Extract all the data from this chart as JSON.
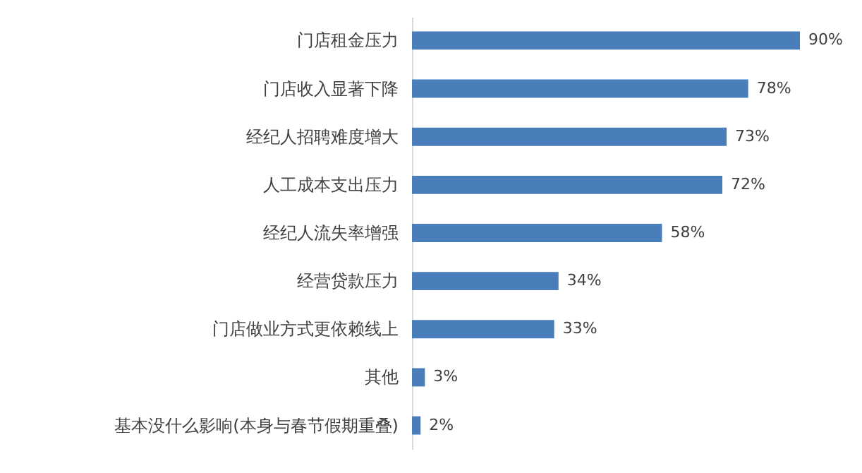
{
  "chart_data": {
    "type": "bar",
    "orientation": "horizontal",
    "categories": [
      "门店租金压力",
      "门店收入显著下降",
      "经纪人招聘难度增大",
      "人工成本支出压力",
      "经纪人流失率增强",
      "经营贷款压力",
      "门店做业方式更依赖线上",
      "其他",
      "基本没什么影响(本身与春节假期重叠)"
    ],
    "values": [
      90,
      78,
      73,
      72,
      58,
      34,
      33,
      3,
      2
    ],
    "value_labels": [
      "90%",
      "78%",
      "73%",
      "72%",
      "58%",
      "34%",
      "33%",
      "3%",
      "2%"
    ],
    "color": "#4a7ebb"
  }
}
